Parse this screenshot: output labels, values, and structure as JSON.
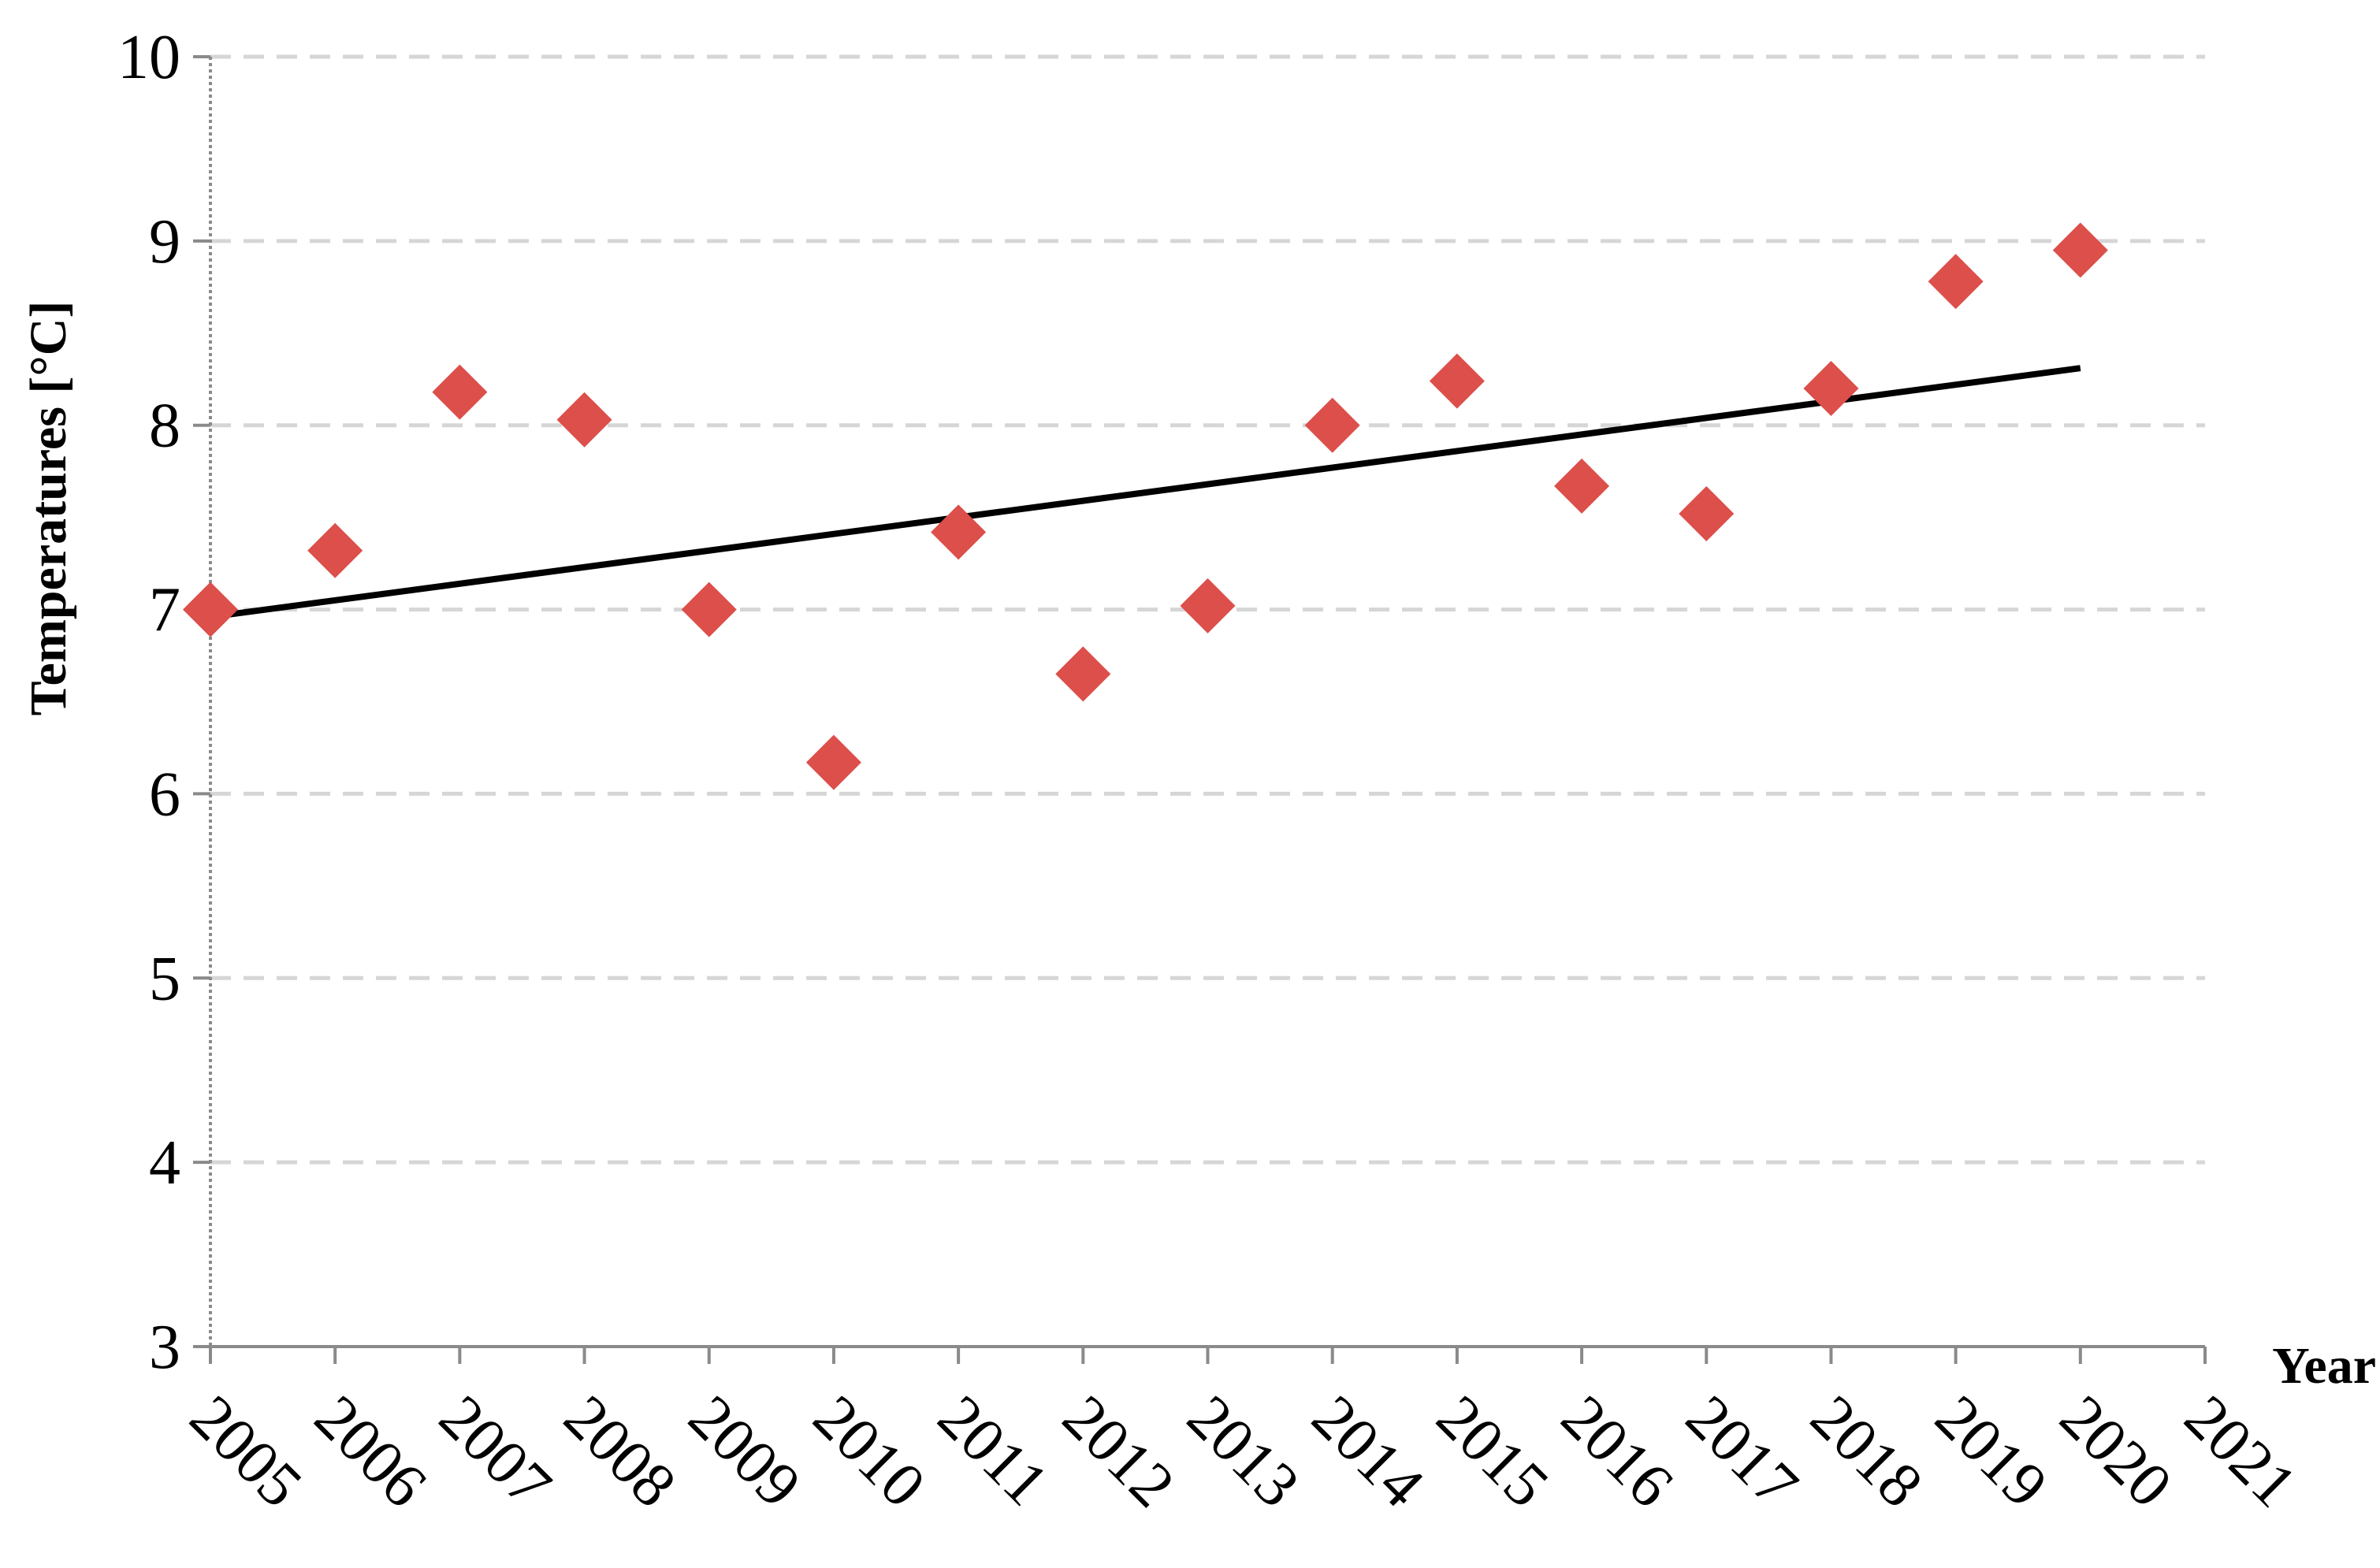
{
  "chart_data": {
    "type": "scatter",
    "x": [
      2005,
      2006,
      2007,
      2008,
      2009,
      2010,
      2011,
      2012,
      2013,
      2014,
      2015,
      2016,
      2017,
      2018,
      2019,
      2020
    ],
    "series": [
      {
        "color": "#dc4f4a",
        "values": [
          7.0,
          7.32,
          8.18,
          8.03,
          7.0,
          6.17,
          7.42,
          6.65,
          7.02,
          8.0,
          8.24,
          7.67,
          7.52,
          8.2,
          8.78,
          8.95
        ]
      }
    ],
    "trendline": {
      "color": "#000000",
      "x": [
        2005,
        2020
      ],
      "values": [
        6.96,
        8.31
      ]
    },
    "xlim": [
      2005,
      2021
    ],
    "xticks": [
      2005,
      2006,
      2007,
      2008,
      2009,
      2010,
      2011,
      2012,
      2013,
      2014,
      2015,
      2016,
      2017,
      2018,
      2019,
      2020,
      2021
    ],
    "ylim": [
      3,
      10
    ],
    "yticks": [
      3,
      4,
      5,
      6,
      7,
      8,
      9,
      10
    ],
    "xlabel": "Year",
    "ylabel": "Temperatures [°C]",
    "grid": true
  }
}
